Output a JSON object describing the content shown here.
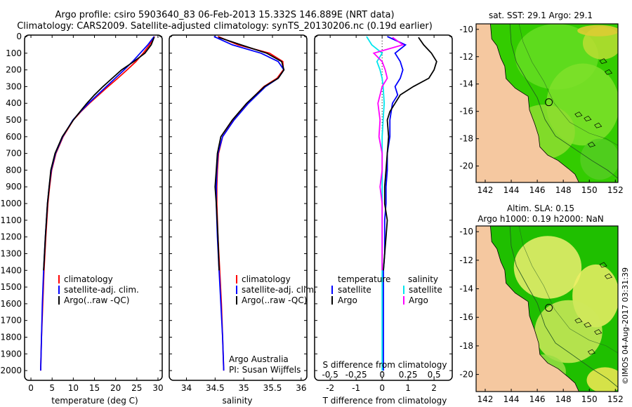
{
  "title_line1": "Argo profile: csiro 5903640_83 06-Feb-2013 15.332S 146.889E (NRT data)",
  "title_line2": "Climatology: CARS2009. Satellite-adjusted climatology: synTS_20130206.nc (0.19d earlier)",
  "credit": "Argo Australia",
  "pi": "PI: Susan Wijffels",
  "stamp": "©IMOS 04-Aug-2017 03:31:39",
  "map1_title": "sat. SST: 29.1 Argo: 29.1",
  "map2_title1": "Altim. SLA: 0.15",
  "map2_title2": "Argo h1000: 0.19 h2000: NaN",
  "colors": {
    "climatology": "#ff0000",
    "satellite": "#0000ff",
    "argo": "#000000",
    "sal_satellite": "#00e5ee",
    "sal_argo": "#ff00ff"
  },
  "chart_data": [
    {
      "type": "line",
      "panel": "temperature",
      "xlabel": "temperature (deg C)",
      "ylim": [
        0,
        2050
      ],
      "xlim": [
        -1.5,
        31
      ],
      "xticks": [
        "0",
        "5",
        "10",
        "15",
        "20",
        "25",
        "30"
      ],
      "yticks": [
        "0",
        "100",
        "200",
        "300",
        "400",
        "500",
        "600",
        "700",
        "800",
        "900",
        "1000",
        "1100",
        "1200",
        "1300",
        "1400",
        "1500",
        "1600",
        "1700",
        "1800",
        "1900",
        "2000"
      ],
      "legend": [
        "climatology",
        "satellite-adj. clim.",
        "Argo(..raw -QC)"
      ],
      "series": [
        {
          "name": "climatology",
          "depth": [
            0,
            50,
            100,
            150,
            200,
            250,
            300,
            350,
            400,
            450,
            500,
            600,
            700,
            800,
            900,
            1000,
            1200,
            1400,
            1600,
            1800,
            2000
          ],
          "values": [
            29.2,
            28.0,
            26.5,
            24.8,
            22.7,
            20.5,
            18.2,
            16.0,
            13.8,
            11.8,
            10.0,
            7.6,
            5.9,
            4.9,
            4.4,
            4.0,
            3.5,
            3.1,
            2.8,
            2.5,
            2.3
          ]
        },
        {
          "name": "satellite-adj. clim.",
          "depth": [
            0,
            50,
            100,
            150,
            200,
            250,
            300,
            350,
            400,
            450,
            500,
            600,
            700,
            800,
            900,
            1000,
            1200,
            1400,
            1600,
            1800,
            2000
          ],
          "values": [
            29.1,
            27.6,
            25.8,
            24.0,
            22.0,
            19.9,
            17.8,
            15.7,
            13.6,
            11.7,
            9.9,
            7.5,
            5.8,
            4.8,
            4.3,
            3.9,
            3.4,
            3.0,
            2.7,
            2.5,
            2.3
          ]
        },
        {
          "name": "Argo(..raw -QC)",
          "depth": [
            5,
            50,
            100,
            150,
            200,
            250,
            300,
            350,
            400,
            450,
            500,
            600,
            700,
            800,
            900,
            1000,
            1200,
            1400
          ],
          "values": [
            29.1,
            28.4,
            26.9,
            24.3,
            21.4,
            19.2,
            17.0,
            15.0,
            13.2,
            11.6,
            10.0,
            7.4,
            5.7,
            4.7,
            4.3,
            3.9,
            3.4,
            3.0
          ]
        }
      ]
    },
    {
      "type": "line",
      "panel": "salinity",
      "xlabel": "salinity",
      "ylim": [
        0,
        2050
      ],
      "xlim": [
        33.7,
        36.1
      ],
      "xticks": [
        "34",
        "34.5",
        "35",
        "35.5",
        "36"
      ],
      "legend": [
        "climatology",
        "satellite-adj. clim.",
        "Argo(..raw -QC)"
      ],
      "series": [
        {
          "name": "climatology",
          "depth": [
            0,
            50,
            100,
            150,
            200,
            250,
            300,
            400,
            500,
            600,
            700,
            800,
            900,
            1000,
            1200,
            1400,
            1600,
            1800,
            2000
          ],
          "values": [
            34.55,
            34.9,
            35.45,
            35.68,
            35.69,
            35.58,
            35.35,
            35.06,
            34.82,
            34.63,
            34.56,
            34.54,
            34.53,
            34.53,
            34.55,
            34.58,
            34.61,
            34.63,
            34.65
          ]
        },
        {
          "name": "satellite-adj. clim.",
          "depth": [
            0,
            50,
            100,
            150,
            200,
            250,
            300,
            400,
            500,
            600,
            700,
            800,
            900,
            1000,
            1200,
            1400,
            1600,
            1800,
            2000
          ],
          "values": [
            34.48,
            34.8,
            35.3,
            35.6,
            35.7,
            35.6,
            35.38,
            35.08,
            34.83,
            34.63,
            34.55,
            34.53,
            34.52,
            34.52,
            34.54,
            34.57,
            34.6,
            34.63,
            34.65
          ]
        },
        {
          "name": "Argo(..raw -QC)",
          "depth": [
            5,
            50,
            100,
            150,
            200,
            250,
            300,
            400,
            500,
            600,
            700,
            800,
            900,
            1000,
            1200,
            1400
          ],
          "values": [
            34.56,
            34.95,
            35.4,
            35.66,
            35.7,
            35.6,
            35.36,
            35.05,
            34.8,
            34.6,
            34.54,
            34.52,
            34.5,
            34.52,
            34.55,
            34.57
          ]
        }
      ]
    },
    {
      "type": "line",
      "panel": "difference",
      "xlabel": "T difference from climatology",
      "xlabel_top": "S difference from climatology",
      "xlim": [
        -2.6,
        2.7
      ],
      "xticks": [
        "-2",
        "-1",
        "0",
        "1",
        "2"
      ],
      "xticks_S": [
        "-0.5",
        "-0.25",
        "0",
        "0.25",
        "0.5"
      ],
      "legend_titles": [
        "temperature",
        "salinity"
      ],
      "legend": [
        "satellite",
        "Argo",
        "satellite",
        "Argo"
      ],
      "series": [
        {
          "name": "temperature satellite",
          "depth": [
            0,
            50,
            100,
            150,
            200,
            250,
            300,
            350,
            400,
            500,
            600,
            700,
            800,
            900,
            1000,
            1100,
            1200,
            1300,
            1400,
            1500,
            1700,
            1900,
            2000
          ],
          "values": [
            0.2,
            0.9,
            0.5,
            0.7,
            0.8,
            0.7,
            0.5,
            0.6,
            0.4,
            0.3,
            0.3,
            0.2,
            0.2,
            0.15,
            0.15,
            0.1,
            0.1,
            0.1,
            0.05,
            0.05,
            0.05,
            0.05,
            0.05
          ]
        },
        {
          "name": "temperature Argo",
          "depth": [
            5,
            50,
            100,
            150,
            200,
            250,
            300,
            350,
            400,
            450,
            500,
            600,
            700,
            800,
            900,
            1000,
            1100,
            1200,
            1300,
            1400
          ],
          "values": [
            1.4,
            1.6,
            1.9,
            2.1,
            2.0,
            1.8,
            1.2,
            0.7,
            0.5,
            0.3,
            0.2,
            0.25,
            0.2,
            0.15,
            0.1,
            0.1,
            0.2,
            0.15,
            0.1,
            0.05
          ]
        },
        {
          "name": "salinity satellite",
          "depth": [
            0,
            50,
            100,
            150,
            200,
            250,
            300,
            400,
            500,
            600,
            700,
            800,
            900,
            1000,
            1200,
            1400,
            1600,
            1800,
            2000
          ],
          "values": [
            -0.15,
            -0.1,
            0.0,
            -0.05,
            -0.02,
            0.0,
            0.01,
            0.02,
            0.01,
            0.0,
            0.0,
            0.0,
            0.0,
            0.0,
            0.0,
            0.0,
            0.0,
            0.0,
            0.0
          ]
        },
        {
          "name": "salinity Argo",
          "depth": [
            5,
            50,
            100,
            150,
            200,
            250,
            300,
            400,
            500,
            600,
            700,
            800,
            900,
            1000,
            1200,
            1400
          ],
          "values": [
            0.1,
            0.2,
            -0.08,
            0.0,
            0.03,
            0.05,
            0.0,
            -0.04,
            -0.02,
            -0.03,
            0.0,
            0.0,
            -0.02,
            0.0,
            0.0,
            0.0
          ]
        }
      ]
    },
    {
      "type": "heatmap",
      "panel": "map-sst",
      "xticks": [
        "142",
        "144",
        "146",
        "148",
        "150",
        "152"
      ],
      "yticks": [
        "-10",
        "-12",
        "-14",
        "-16",
        "-18",
        "-20"
      ],
      "xlim": [
        141.3,
        152.2
      ],
      "ylim": [
        -21.2,
        -9.6
      ],
      "profile_lon": 146.889,
      "profile_lat": -15.332
    },
    {
      "type": "heatmap",
      "panel": "map-sla",
      "xticks": [
        "142",
        "144",
        "146",
        "148",
        "150",
        "152"
      ],
      "yticks": [
        "-10",
        "-12",
        "-14",
        "-16",
        "-18",
        "-20"
      ],
      "xlim": [
        141.3,
        152.2
      ],
      "ylim": [
        -21.2,
        -9.6
      ],
      "profile_lon": 146.889,
      "profile_lat": -15.332
    }
  ]
}
